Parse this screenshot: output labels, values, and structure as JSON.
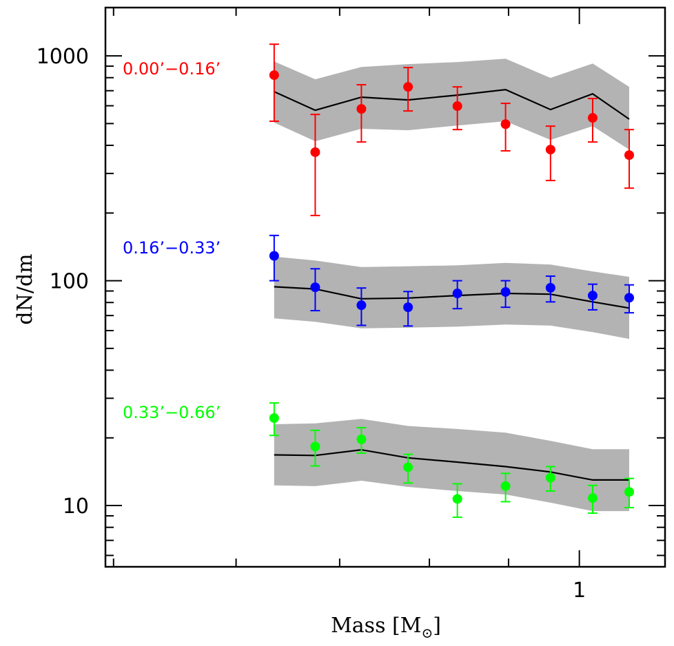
{
  "chart_data": {
    "type": "scatter",
    "title": "",
    "xlabel": "Mass [M⊙]",
    "xlabel_main": "Mass [M",
    "xlabel_sub": "⊙",
    "xlabel_close": "]",
    "ylabel": "dN/dm",
    "xscale": "log",
    "yscale": "log",
    "xlim": [
      0.494,
      1.136
    ],
    "ylim": [
      5.34,
      1640
    ],
    "x_major_ticks": [
      1
    ],
    "x_minor_ticks": [
      0.5,
      0.6,
      0.7,
      0.8,
      0.9
    ],
    "x_tick_labels": [
      "1"
    ],
    "y_major_ticks": [
      10,
      100,
      1000
    ],
    "y_tick_labels": [
      "10",
      "100",
      "1000"
    ],
    "grid": false,
    "legend": "none (inline series labels at left)",
    "band_color": "#b3b3b3",
    "model_line_color": "#000000",
    "x": [
      0.635,
      0.675,
      0.723,
      0.775,
      0.834,
      0.896,
      0.958,
      1.02,
      1.077
    ],
    "series": [
      {
        "name": "0.00’−0.16’",
        "color": "#ff0000",
        "values": [
          821,
          373,
          581,
          728,
          598,
          497,
          383,
          530,
          362
        ],
        "err_high": [
          1127,
          549,
          744,
          887,
          728,
          615,
          487,
          646,
          470
        ],
        "err_low": [
          512,
          195,
          414,
          569,
          470,
          378,
          279,
          414,
          258
        ],
        "model": [
          693,
          573,
          655,
          637,
          669,
          708,
          577,
          678,
          523
        ],
        "band_high": [
          945,
          787,
          893,
          919,
          939,
          972,
          798,
          925,
          728
        ],
        "band_low": [
          505,
          417,
          474,
          467,
          490,
          512,
          423,
          487,
          383
        ]
      },
      {
        "name": "0.16’−0.33’",
        "color": "#0000ff",
        "values": [
          129,
          93.5,
          77.8,
          76.2,
          87.8,
          89.1,
          93.0,
          85.9,
          84.0
        ],
        "err_high": [
          159,
          113,
          92.8,
          89.5,
          100,
          100,
          104.8,
          96.5,
          95.8
        ],
        "err_low": [
          100,
          73.6,
          63.3,
          62.9,
          75.1,
          76.2,
          80.5,
          74.2,
          72.0
        ],
        "model": [
          94,
          91.9,
          83.1,
          83.7,
          85.9,
          87.8,
          87.1,
          80.5,
          75.6
        ],
        "band_high": [
          128,
          123,
          115,
          116,
          117,
          120,
          118,
          110,
          104
        ],
        "band_low": [
          68.0,
          65.7,
          61.4,
          61.8,
          62.5,
          63.8,
          63.2,
          59.1,
          55.1
        ]
      },
      {
        "name": "0.33’−0.66’",
        "color": "#00ff00",
        "values": [
          24.5,
          18.3,
          19.7,
          14.8,
          10.7,
          12.2,
          13.3,
          10.8,
          11.5
        ],
        "err_high": [
          28.6,
          21.6,
          22.2,
          16.9,
          12.5,
          13.9,
          14.9,
          12.3,
          13.2
        ],
        "err_low": [
          20.5,
          15.0,
          17.1,
          12.6,
          8.87,
          10.4,
          11.6,
          9.25,
          9.79
        ],
        "model": [
          16.8,
          16.7,
          17.7,
          16.3,
          15.6,
          14.9,
          14.1,
          13.0,
          13.0
        ],
        "band_high": [
          23.0,
          23.2,
          24.3,
          22.6,
          21.9,
          21.1,
          19.4,
          17.8,
          17.8
        ],
        "band_low": [
          12.3,
          12.2,
          12.9,
          12.1,
          11.6,
          11.2,
          10.3,
          9.45,
          9.45
        ]
      }
    ]
  }
}
